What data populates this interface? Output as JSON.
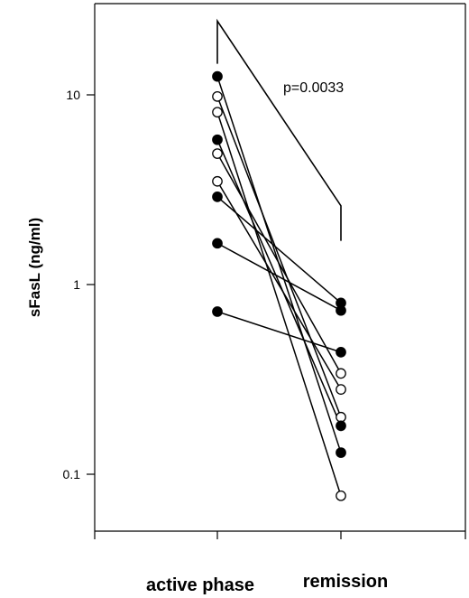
{
  "chart_data": {
    "type": "line",
    "title": "",
    "xlabel": "",
    "ylabel": "sFasL (ng/ml)",
    "yscale": "log",
    "ylim": [
      0.05,
      25
    ],
    "yticks": [
      {
        "value": 10,
        "label": "10"
      },
      {
        "value": 1,
        "label": "1"
      },
      {
        "value": 0.1,
        "label": "0.1"
      }
    ],
    "categories": [
      "active phase",
      "remission"
    ],
    "annotation": "p=0.0033",
    "bracket_values": {
      "left_bottom": 12.5,
      "top": 24.5,
      "right_top": 2.6,
      "right_bottom": 1.7
    },
    "marker_styles": {
      "filled": "#000000",
      "open": "#ffffff"
    },
    "series": [
      {
        "marker": "filled",
        "values": [
          12.5,
          0.13
        ]
      },
      {
        "marker": "open",
        "values": [
          9.8,
          0.2
        ]
      },
      {
        "marker": "open",
        "values": [
          8.1,
          0.077
        ]
      },
      {
        "marker": "filled",
        "values": [
          5.8,
          0.18
        ]
      },
      {
        "marker": "open",
        "values": [
          4.9,
          0.34
        ]
      },
      {
        "marker": "open",
        "values": [
          3.5,
          0.28
        ]
      },
      {
        "marker": "filled",
        "values": [
          2.9,
          0.8
        ]
      },
      {
        "marker": "filled",
        "values": [
          1.65,
          0.73
        ]
      },
      {
        "marker": "filled",
        "values": [
          0.72,
          0.44
        ]
      }
    ]
  }
}
